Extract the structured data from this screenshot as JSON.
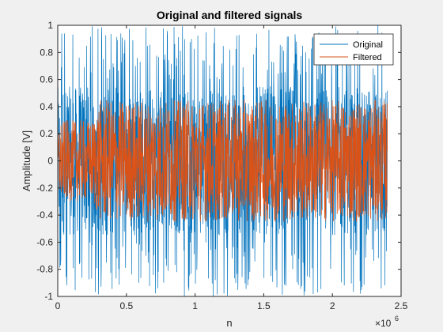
{
  "chart_data": {
    "type": "line",
    "title": "Original and filtered signals",
    "xlabel": "n",
    "ylabel": "Amplitude [V]",
    "x_exponent_label": "×10",
    "x_exponent_power": "6",
    "xlim": [
      0,
      2.5
    ],
    "ylim": [
      -1,
      1
    ],
    "x_scale_note": "x tick values multiplied by 10^6",
    "x_ticks": [
      0,
      0.5,
      1,
      1.5,
      2,
      2.5
    ],
    "x_tick_labels": [
      "0",
      "0.5",
      "1",
      "1.5",
      "2",
      "2.5"
    ],
    "y_ticks": [
      -1,
      -0.8,
      -0.6,
      -0.4,
      -0.2,
      0,
      0.2,
      0.4,
      0.6,
      0.8,
      1
    ],
    "y_tick_labels": [
      "-1",
      "-0.8",
      "-0.6",
      "-0.4",
      "-0.2",
      "0",
      "0.2",
      "0.4",
      "0.6",
      "0.8",
      "1"
    ],
    "grid": false,
    "legend_position": "top-right",
    "series": [
      {
        "name": "Original",
        "color": "#0072BD",
        "x": [
          0,
          0.05,
          0.1,
          0.15,
          0.2,
          0.25,
          0.3,
          0.35,
          0.5,
          0.75,
          1.0,
          1.25,
          1.5,
          1.75,
          2.0,
          2.25,
          2.38,
          2.4
        ],
        "y_upper": [
          1,
          1,
          1,
          1,
          1,
          1,
          1,
          1,
          1,
          1,
          1,
          1,
          1,
          1,
          1,
          1,
          1,
          0.9
        ],
        "y_lower": [
          -1,
          -1,
          -1,
          -1,
          -1,
          -1,
          -1,
          -1,
          -1,
          -1,
          -1,
          -1,
          -1,
          -1,
          -1,
          -1,
          -1,
          -0.9
        ]
      },
      {
        "name": "Filtered",
        "color": "#D95319",
        "x": [
          0,
          0.05,
          0.1,
          0.15,
          0.2,
          0.25,
          0.3,
          0.35,
          0.5,
          0.75,
          1.0,
          1.25,
          1.5,
          1.75,
          2.0,
          2.25,
          2.38,
          2.4
        ],
        "y_upper": [
          0.3,
          0.3,
          0.3,
          0.3,
          0.3,
          0.3,
          0.45,
          0.45,
          0.45,
          0.45,
          0.45,
          0.45,
          0.45,
          0.45,
          0.45,
          0.45,
          0.45,
          0.45
        ],
        "y_lower": [
          -0.3,
          -0.3,
          -0.3,
          -0.3,
          -0.3,
          -0.3,
          -0.45,
          -0.45,
          -0.45,
          -0.45,
          -0.45,
          -0.45,
          -0.45,
          -0.45,
          -0.45,
          -0.45,
          -0.45,
          -0.45
        ]
      }
    ]
  }
}
